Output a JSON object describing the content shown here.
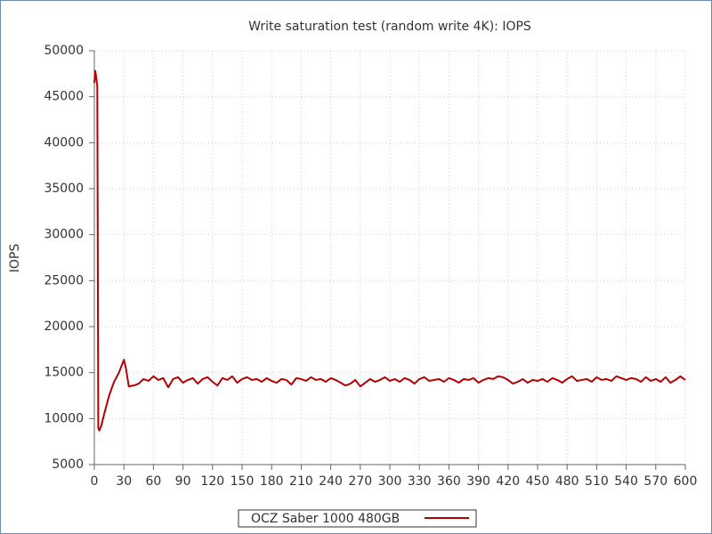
{
  "chart_data": {
    "type": "line",
    "title": "Write saturation test (random write 4K): IOPS",
    "y_label": "IOPS",
    "x": [
      0,
      1,
      2,
      3,
      4,
      5,
      7,
      10,
      15,
      20,
      25,
      30,
      32,
      35,
      40,
      45,
      50,
      55,
      60,
      65,
      70,
      75,
      80,
      85,
      90,
      95,
      100,
      105,
      110,
      115,
      120,
      125,
      130,
      135,
      140,
      145,
      150,
      155,
      160,
      165,
      170,
      175,
      180,
      185,
      190,
      195,
      200,
      205,
      210,
      215,
      220,
      225,
      230,
      235,
      240,
      245,
      250,
      255,
      260,
      265,
      270,
      275,
      280,
      285,
      290,
      295,
      300,
      305,
      310,
      315,
      320,
      325,
      330,
      335,
      340,
      345,
      350,
      355,
      360,
      365,
      370,
      375,
      380,
      385,
      390,
      395,
      400,
      405,
      410,
      415,
      420,
      425,
      430,
      435,
      440,
      445,
      450,
      455,
      460,
      465,
      470,
      475,
      480,
      485,
      490,
      495,
      500,
      505,
      510,
      515,
      520,
      525,
      530,
      535,
      540,
      545,
      550,
      555,
      560,
      565,
      570,
      575,
      580,
      585,
      590,
      595,
      600
    ],
    "series": [
      {
        "name": "OCZ Saber 1000 480GB",
        "color": "#b30000",
        "values": [
          46500,
          47800,
          47000,
          46200,
          9000,
          8700,
          9200,
          10500,
          12500,
          14000,
          15000,
          16400,
          15500,
          13500,
          13600,
          13800,
          14300,
          14100,
          14600,
          14200,
          14400,
          13400,
          14300,
          14500,
          13900,
          14200,
          14400,
          13800,
          14300,
          14500,
          14000,
          13600,
          14400,
          14200,
          14600,
          13900,
          14300,
          14500,
          14200,
          14300,
          14000,
          14400,
          14100,
          13900,
          14300,
          14200,
          13700,
          14400,
          14300,
          14100,
          14500,
          14200,
          14300,
          14000,
          14400,
          14200,
          13900,
          13600,
          13800,
          14200,
          13500,
          13900,
          14300,
          14000,
          14200,
          14500,
          14100,
          14300,
          14000,
          14400,
          14200,
          13800,
          14300,
          14500,
          14100,
          14200,
          14300,
          14000,
          14400,
          14200,
          13900,
          14300,
          14200,
          14400,
          13900,
          14200,
          14400,
          14300,
          14600,
          14500,
          14200,
          13800,
          14000,
          14300,
          13900,
          14200,
          14100,
          14300,
          14000,
          14400,
          14200,
          13900,
          14300,
          14600,
          14100,
          14200,
          14300,
          14000,
          14500,
          14200,
          14300,
          14100,
          14600,
          14400,
          14200,
          14400,
          14300,
          14000,
          14500,
          14100,
          14300,
          14000,
          14500,
          13900,
          14200,
          14600,
          14200
        ]
      }
    ],
    "xlim": [
      0,
      600
    ],
    "xticks": [
      0,
      30,
      60,
      90,
      120,
      150,
      180,
      210,
      240,
      270,
      300,
      330,
      360,
      390,
      420,
      450,
      480,
      510,
      540,
      570,
      600
    ],
    "ylim": [
      5000,
      50000
    ],
    "yticks": [
      5000,
      10000,
      15000,
      20000,
      25000,
      30000,
      35000,
      40000,
      45000,
      50000
    ],
    "grid": true
  }
}
